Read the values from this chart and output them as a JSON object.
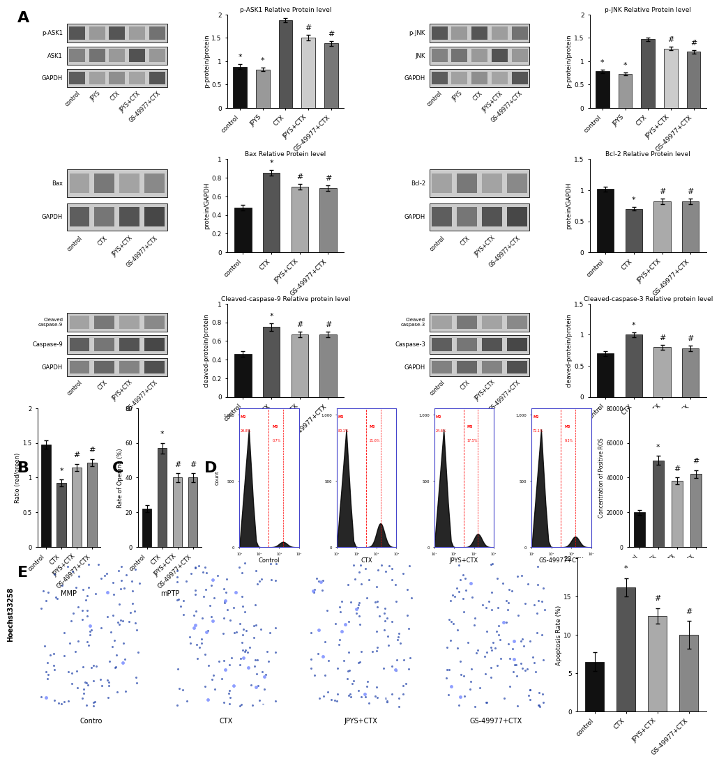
{
  "categories_5": [
    "control",
    "JPYS",
    "CTX",
    "JPYS+CTX",
    "GS-49977+CTX"
  ],
  "categories_4": [
    "control",
    "CTX",
    "JPYS+CTX",
    "GS-49977+CTX"
  ],
  "pASK1_values": [
    0.88,
    0.82,
    1.88,
    1.5,
    1.38
  ],
  "pASK1_errors": [
    0.05,
    0.04,
    0.04,
    0.06,
    0.05
  ],
  "pASK1_ylabel": "p-protein/protein",
  "pASK1_title": "p-ASK1 Relative Protein level",
  "pASK1_ylim": [
    0.0,
    2.0
  ],
  "pASK1_yticks": [
    0.0,
    0.5,
    1.0,
    1.5,
    2.0
  ],
  "pASK1_sig_idx": [
    0,
    1,
    3,
    4
  ],
  "pASK1_sig_txt": [
    "*",
    "*",
    "#",
    "#"
  ],
  "pJNK_values": [
    0.78,
    0.72,
    1.47,
    1.27,
    1.2
  ],
  "pJNK_errors": [
    0.04,
    0.03,
    0.04,
    0.04,
    0.04
  ],
  "pJNK_ylabel": "p-protein/protein",
  "pJNK_title": "p-JNK Relative Protein level",
  "pJNK_ylim": [
    0.0,
    2.0
  ],
  "pJNK_yticks": [
    0.0,
    0.5,
    1.0,
    1.5,
    2.0
  ],
  "pJNK_sig_idx": [
    0,
    1,
    3,
    4
  ],
  "pJNK_sig_txt": [
    "*",
    "*",
    "#",
    "#"
  ],
  "Bax_values": [
    0.48,
    0.85,
    0.7,
    0.69
  ],
  "Bax_errors": [
    0.03,
    0.03,
    0.03,
    0.03
  ],
  "Bax_ylabel": "protein/GAPDH",
  "Bax_title": "Bax Relative Protein level",
  "Bax_ylim": [
    0.0,
    1.0
  ],
  "Bax_yticks": [
    0.0,
    0.2,
    0.4,
    0.6,
    0.8,
    1.0
  ],
  "Bax_sig_idx": [
    1,
    2,
    3
  ],
  "Bax_sig_txt": [
    "*",
    "#",
    "#"
  ],
  "Bcl2_values": [
    1.02,
    0.7,
    0.82,
    0.82
  ],
  "Bcl2_errors": [
    0.04,
    0.03,
    0.04,
    0.04
  ],
  "Bcl2_ylabel": "protein/GAPDH",
  "Bcl2_title": "Bcl-2 Relative Protein level",
  "Bcl2_ylim": [
    0.0,
    1.5
  ],
  "Bcl2_yticks": [
    0.0,
    0.5,
    1.0,
    1.5
  ],
  "Bcl2_sig_idx": [
    1,
    2,
    3
  ],
  "Bcl2_sig_txt": [
    "*",
    "#",
    "#"
  ],
  "casp9_values": [
    0.46,
    0.75,
    0.67,
    0.67
  ],
  "casp9_errors": [
    0.03,
    0.04,
    0.03,
    0.03
  ],
  "casp9_ylabel": "cleaved-protein/protein",
  "casp9_title": "Cleaved-caspase-9 Relative protein level",
  "casp9_ylim": [
    0.0,
    1.0
  ],
  "casp9_yticks": [
    0.0,
    0.2,
    0.4,
    0.6,
    0.8,
    1.0
  ],
  "casp9_sig_idx": [
    1,
    2,
    3
  ],
  "casp9_sig_txt": [
    "*",
    "#",
    "#"
  ],
  "casp3_values": [
    0.7,
    1.0,
    0.8,
    0.78
  ],
  "casp3_errors": [
    0.04,
    0.04,
    0.04,
    0.04
  ],
  "casp3_ylabel": "cleaved-protein/protein",
  "casp3_title": "Cleaved-caspase-3 Relative protein level",
  "casp3_ylim": [
    0.0,
    1.5
  ],
  "casp3_yticks": [
    0.0,
    0.5,
    1.0,
    1.5
  ],
  "casp3_sig_idx": [
    1,
    2,
    3
  ],
  "casp3_sig_txt": [
    "*",
    "#",
    "#"
  ],
  "MMP_values": [
    1.48,
    0.92,
    1.15,
    1.22
  ],
  "MMP_errors": [
    0.06,
    0.05,
    0.05,
    0.05
  ],
  "MMP_ylabel": "Ratio (red/green)",
  "MMP_xlabel": "MMP",
  "MMP_ylim": [
    0.0,
    2.0
  ],
  "MMP_yticks": [
    0.0,
    0.5,
    1.0,
    1.5,
    2.0
  ],
  "MMP_sig_idx": [
    1,
    2,
    3
  ],
  "MMP_sig_txt": [
    "*",
    "#",
    "#"
  ],
  "mPTP_values": [
    22,
    57,
    40,
    40
  ],
  "mPTP_errors": [
    2,
    3,
    2.5,
    2.5
  ],
  "mPTP_ylabel": "Rate of Opening (%)",
  "mPTP_xlabel": "mPTP",
  "mPTP_ylim": [
    0,
    80
  ],
  "mPTP_yticks": [
    0,
    20,
    40,
    60,
    80
  ],
  "mPTP_sig_idx": [
    1,
    2,
    3
  ],
  "mPTP_sig_txt": [
    "*",
    "#",
    "#"
  ],
  "ROS_values": [
    20000,
    50000,
    38000,
    42000
  ],
  "ROS_errors": [
    1500,
    2500,
    2000,
    2200
  ],
  "ROS_ylabel": "Concentration of Positive ROS",
  "ROS_ylim": [
    0,
    80000
  ],
  "ROS_yticks": [
    0,
    20000,
    40000,
    60000,
    80000
  ],
  "ROS_sig_idx": [
    1,
    2,
    3
  ],
  "ROS_sig_txt": [
    "*",
    "#",
    "#"
  ],
  "Apoptosis_values": [
    6.5,
    16.2,
    12.5,
    10.0
  ],
  "Apoptosis_errors": [
    1.2,
    1.2,
    1.0,
    1.8
  ],
  "Apoptosis_ylabel": "Apoptosis Rate (%)",
  "Apoptosis_ylim": [
    0,
    20
  ],
  "Apoptosis_yticks": [
    0,
    5,
    10,
    15,
    20
  ],
  "Apoptosis_sig_idx": [
    1,
    2,
    3
  ],
  "Apoptosis_sig_txt": [
    "*",
    "#",
    "#"
  ],
  "bar_colors_5": [
    "#111111",
    "#999999",
    "#555555",
    "#cccccc",
    "#777777"
  ],
  "bar_colors_4_bax": [
    "#111111",
    "#555555",
    "#aaaaaa",
    "#888888"
  ],
  "bar_colors_4_bcl2": [
    "#111111",
    "#555555",
    "#aaaaaa",
    "#888888"
  ],
  "bar_colors_4_mmp": [
    "#111111",
    "#555555",
    "#aaaaaa",
    "#888888"
  ],
  "flow_M2_pcts": [
    "29.8%",
    "80.1%",
    "24.6%",
    "72.1%"
  ],
  "flow_M3_pcts": [
    "0.7%",
    "21.6%",
    "17.5%",
    "9.3%"
  ],
  "flow_labels": [
    "Control",
    "CTX",
    "JPYS+CTX",
    "GS-49977+CTX"
  ],
  "hoechst_labels": [
    "Contro",
    "CTX",
    "JPYS+CTX",
    "GS-49977+CTX"
  ],
  "figure_bg": "#ffffff"
}
